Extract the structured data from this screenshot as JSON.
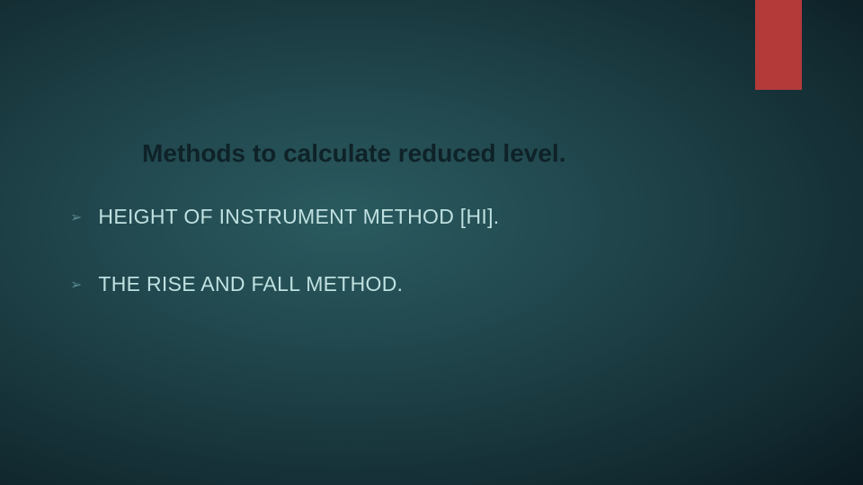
{
  "slide": {
    "title": "Methods to calculate  reduced level.",
    "bullets": [
      {
        "text": "HEIGHT OF INSTRUMENT METHOD [HI]."
      },
      {
        "text": "THE RISE AND FALL METHOD."
      }
    ],
    "accent_color": "#b43a3a",
    "background_gradient": {
      "center": "#2a5a5f",
      "outer": "#0a1a20"
    },
    "title_color": "#0e2228",
    "title_fontsize": 28,
    "bullet_color": "#bfe0e0",
    "bullet_fontsize": 23,
    "bullet_marker_color": "#5a8a90",
    "bullet_marker": "➢"
  }
}
